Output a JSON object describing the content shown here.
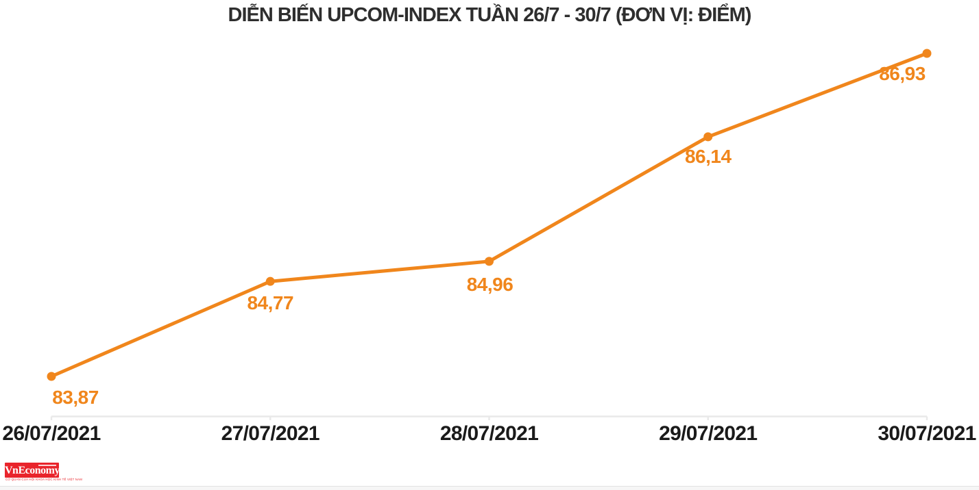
{
  "title": "DIỄN BIẾN UPCOM-INDEX TUẦN 26/7 - 30/7 (ĐƠN VỊ: ĐIỂM)",
  "chart_data": {
    "type": "line",
    "title": "DIỄN BIẾN UPCOM-INDEX TUẦN 26/7 - 30/7 (ĐƠN VỊ: ĐIỂM)",
    "categories": [
      "26/07/2021",
      "27/07/2021",
      "28/07/2021",
      "29/07/2021",
      "30/07/2021"
    ],
    "values": [
      83.87,
      84.77,
      84.96,
      86.14,
      86.93
    ],
    "value_labels": [
      "83,87",
      "84,77",
      "84,96",
      "86,14",
      "86,93"
    ],
    "xlabel": "",
    "ylabel": "",
    "ylim": [
      83.5,
      87.2
    ],
    "grid": false,
    "legend": false,
    "line_style": "smooth-spline",
    "marker": "filled-circle"
  },
  "colors": {
    "line": "#f0861c",
    "marker": "#f0861c",
    "data_label": "#f0861c",
    "title_text": "#2e2e2e",
    "axis_text": "#1a1a1a",
    "axis_line": "#e9e9e9",
    "logo_red": "#e9242b"
  },
  "footer": {
    "logo_text": "VnEconomy",
    "logo_tagline": "CƠ QUAN CỦA HỘI KHOA HỌC KINH TẾ VIỆT NAM"
  }
}
